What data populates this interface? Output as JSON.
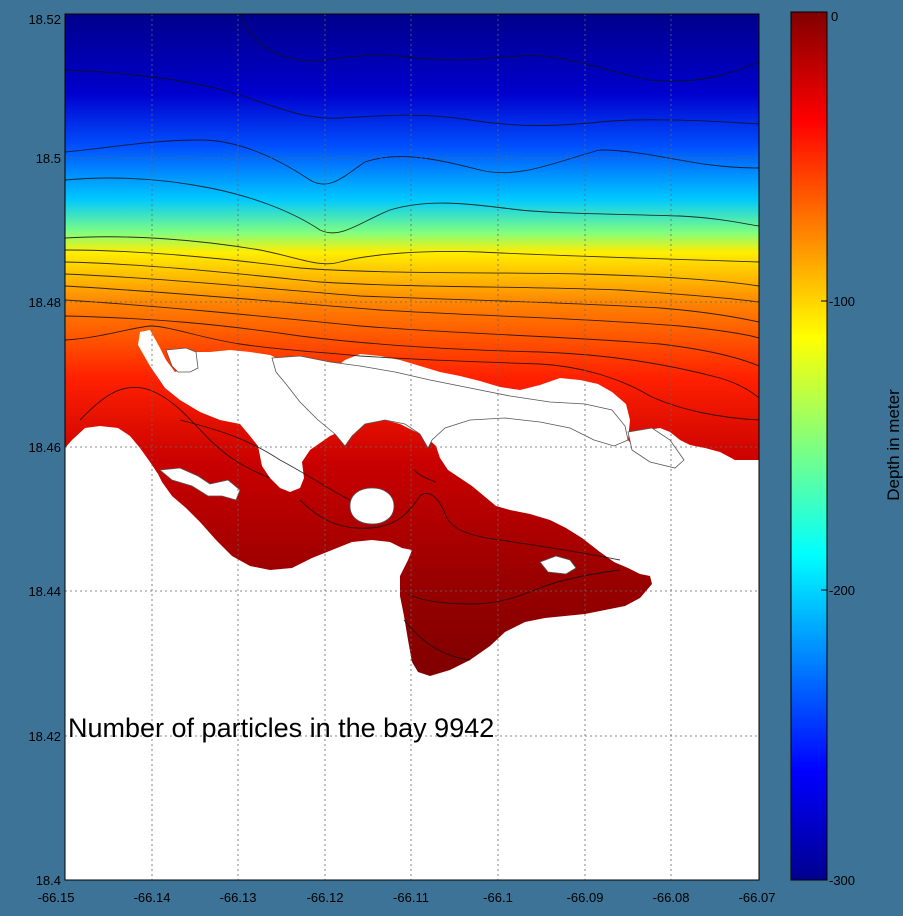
{
  "annotation": "Number of particles in the bay 9942",
  "colorbar": {
    "label": "Depth in meter",
    "range": [
      -300,
      0
    ],
    "ticks": [
      "0",
      "-100",
      "-200",
      "-300"
    ],
    "colormap": "jet"
  },
  "axes": {
    "x_ticks": [
      "-66.15",
      "-66.14",
      "-66.13",
      "-66.12",
      "-66.11",
      "-66.1",
      "-66.09",
      "-66.08",
      "-66.07"
    ],
    "y_ticks": [
      "18.52",
      "18.5",
      "18.48",
      "18.46",
      "18.44",
      "18.42",
      "18.4"
    ],
    "xlim": [
      -66.15,
      -66.07
    ],
    "ylim": [
      18.4,
      18.52
    ],
    "grid": "dotted"
  },
  "colors": {
    "frame": "#3c7396",
    "deep": "#00008b",
    "shallow": "#800000",
    "land": "#ffffff"
  }
}
